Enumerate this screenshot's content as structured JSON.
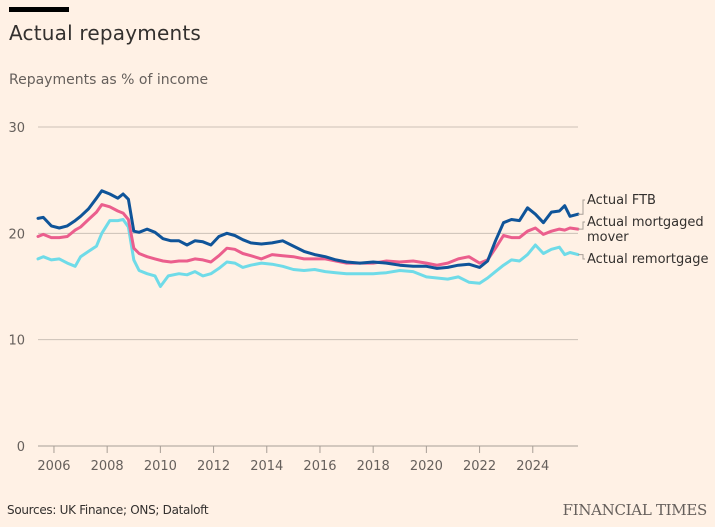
{
  "header": {
    "title": "Actual repayments",
    "subtitle": "Repayments as % of income"
  },
  "footer": {
    "source": "Sources: UK Finance; ONS; Dataloft",
    "brand": "FINANCIAL TIMES"
  },
  "colors": {
    "background": "#fff1e5",
    "grid": "#ccc1b7",
    "ftb": "#0f5499",
    "mover": "#eb5e8d",
    "remortgage": "#6fdbe8"
  },
  "chart_data": {
    "type": "line",
    "title": "Actual repayments",
    "subtitle": "Repayments as % of income",
    "xlabel": "",
    "ylabel": "Repayments as % of income",
    "xlim": [
      2005.4,
      2025.7
    ],
    "ylim": [
      0,
      30
    ],
    "yticks": [
      0,
      10,
      20,
      30
    ],
    "ytick_labels": [
      "0",
      "10",
      "20",
      "30"
    ],
    "xticks": [
      2006,
      2008,
      2010,
      2012,
      2014,
      2016,
      2018,
      2020,
      2022,
      2024
    ],
    "xtick_labels": [
      "2006",
      "2008",
      "2010",
      "2012",
      "2014",
      "2016",
      "2018",
      "2020",
      "2022",
      "2024"
    ],
    "grid": true,
    "legend": "right (direct labels)",
    "series": [
      {
        "name": "Actual FTB",
        "label_lines": [
          "Actual FTB"
        ],
        "color_key": "ftb",
        "x": [
          2005.4,
          2005.6,
          2005.9,
          2006.2,
          2006.5,
          2006.8,
          2007.0,
          2007.3,
          2007.6,
          2007.8,
          2008.1,
          2008.4,
          2008.6,
          2008.8,
          2009.0,
          2009.2,
          2009.5,
          2009.8,
          2010.1,
          2010.4,
          2010.7,
          2011.0,
          2011.3,
          2011.6,
          2011.9,
          2012.2,
          2012.5,
          2012.8,
          2013.1,
          2013.4,
          2013.8,
          2014.2,
          2014.6,
          2015.0,
          2015.4,
          2015.8,
          2016.2,
          2016.6,
          2017.0,
          2017.5,
          2018.0,
          2018.5,
          2019.0,
          2019.5,
          2020.0,
          2020.4,
          2020.8,
          2021.2,
          2021.6,
          2022.0,
          2022.3,
          2022.6,
          2022.9,
          2023.2,
          2023.5,
          2023.8,
          2024.1,
          2024.4,
          2024.7,
          2025.0,
          2025.2,
          2025.4,
          2025.7
        ],
        "y": [
          21.4,
          21.5,
          20.7,
          20.5,
          20.7,
          21.2,
          21.6,
          22.3,
          23.3,
          24.0,
          23.7,
          23.3,
          23.7,
          23.2,
          20.2,
          20.1,
          20.4,
          20.1,
          19.5,
          19.3,
          19.3,
          18.9,
          19.3,
          19.2,
          18.9,
          19.7,
          20.0,
          19.8,
          19.4,
          19.1,
          19.0,
          19.1,
          19.3,
          18.8,
          18.3,
          18.0,
          17.8,
          17.5,
          17.3,
          17.2,
          17.3,
          17.2,
          17.0,
          16.9,
          16.9,
          16.7,
          16.8,
          17.0,
          17.1,
          16.8,
          17.4,
          19.3,
          21.0,
          21.3,
          21.2,
          22.4,
          21.8,
          21.0,
          22.0,
          22.1,
          22.6,
          21.6,
          21.8
        ]
      },
      {
        "name": "Actual mortgaged mover",
        "label_lines": [
          "Actual mortgaged",
          "mover"
        ],
        "color_key": "mover",
        "x": [
          2005.4,
          2005.6,
          2005.9,
          2006.2,
          2006.5,
          2006.8,
          2007.0,
          2007.3,
          2007.6,
          2007.8,
          2008.1,
          2008.4,
          2008.6,
          2008.8,
          2009.0,
          2009.2,
          2009.5,
          2009.8,
          2010.1,
          2010.4,
          2010.7,
          2011.0,
          2011.3,
          2011.6,
          2011.9,
          2012.2,
          2012.5,
          2012.8,
          2013.1,
          2013.4,
          2013.8,
          2014.2,
          2014.6,
          2015.0,
          2015.4,
          2015.8,
          2016.2,
          2016.6,
          2017.0,
          2017.5,
          2018.0,
          2018.5,
          2019.0,
          2019.5,
          2020.0,
          2020.4,
          2020.8,
          2021.2,
          2021.6,
          2022.0,
          2022.3,
          2022.6,
          2022.9,
          2023.2,
          2023.5,
          2023.8,
          2024.1,
          2024.4,
          2024.7,
          2025.0,
          2025.2,
          2025.4,
          2025.7
        ],
        "y": [
          19.7,
          19.9,
          19.6,
          19.6,
          19.7,
          20.3,
          20.6,
          21.3,
          22.0,
          22.7,
          22.5,
          22.1,
          21.9,
          21.3,
          18.6,
          18.1,
          17.8,
          17.6,
          17.4,
          17.3,
          17.4,
          17.4,
          17.6,
          17.5,
          17.3,
          17.9,
          18.6,
          18.5,
          18.1,
          17.9,
          17.6,
          18.0,
          17.9,
          17.8,
          17.6,
          17.6,
          17.6,
          17.4,
          17.2,
          17.2,
          17.2,
          17.4,
          17.3,
          17.4,
          17.2,
          17.0,
          17.2,
          17.6,
          17.8,
          17.2,
          17.5,
          18.6,
          19.8,
          19.6,
          19.6,
          20.2,
          20.5,
          19.9,
          20.2,
          20.4,
          20.3,
          20.5,
          20.4
        ]
      },
      {
        "name": "Actual remortgage",
        "label_lines": [
          "Actual remortgage"
        ],
        "color_key": "remortgage",
        "x": [
          2005.4,
          2005.6,
          2005.9,
          2006.2,
          2006.5,
          2006.8,
          2007.0,
          2007.3,
          2007.6,
          2007.8,
          2008.1,
          2008.4,
          2008.6,
          2008.8,
          2009.0,
          2009.2,
          2009.5,
          2009.8,
          2010.0,
          2010.3,
          2010.7,
          2011.0,
          2011.3,
          2011.6,
          2011.9,
          2012.2,
          2012.5,
          2012.8,
          2013.1,
          2013.4,
          2013.8,
          2014.2,
          2014.6,
          2015.0,
          2015.4,
          2015.8,
          2016.2,
          2016.6,
          2017.0,
          2017.5,
          2018.0,
          2018.5,
          2019.0,
          2019.5,
          2020.0,
          2020.4,
          2020.8,
          2021.2,
          2021.6,
          2022.0,
          2022.3,
          2022.6,
          2022.9,
          2023.2,
          2023.5,
          2023.8,
          2024.1,
          2024.4,
          2024.7,
          2025.0,
          2025.2,
          2025.4,
          2025.7
        ],
        "y": [
          17.6,
          17.8,
          17.5,
          17.6,
          17.2,
          16.9,
          17.8,
          18.3,
          18.8,
          20.0,
          21.2,
          21.2,
          21.3,
          20.6,
          17.5,
          16.5,
          16.2,
          16.0,
          15.0,
          16.0,
          16.2,
          16.1,
          16.4,
          16.0,
          16.2,
          16.7,
          17.3,
          17.2,
          16.8,
          17.0,
          17.2,
          17.1,
          16.9,
          16.6,
          16.5,
          16.6,
          16.4,
          16.3,
          16.2,
          16.2,
          16.2,
          16.3,
          16.5,
          16.4,
          15.9,
          15.8,
          15.7,
          15.9,
          15.4,
          15.3,
          15.8,
          16.4,
          17.0,
          17.5,
          17.4,
          18.0,
          18.9,
          18.1,
          18.5,
          18.7,
          18.0,
          18.2,
          18.0
        ]
      }
    ]
  }
}
